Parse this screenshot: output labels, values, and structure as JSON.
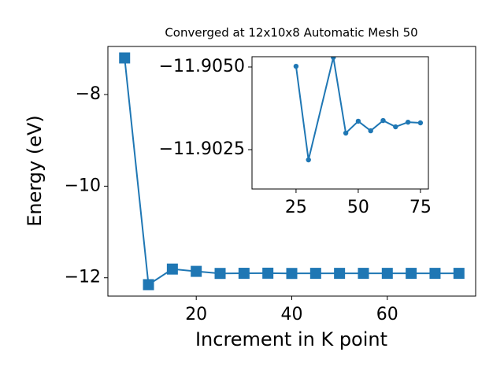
{
  "chart_data": [
    {
      "type": "line",
      "title": "Converged at 12x10x8 Automatic Mesh 50",
      "xlabel": "Increment in K point",
      "ylabel": "Energy (eV)",
      "x": [
        5,
        10,
        15,
        20,
        25,
        30,
        35,
        40,
        45,
        50,
        55,
        60,
        65,
        70,
        75
      ],
      "series": [
        {
          "color": "#1f77b4",
          "marker": "square",
          "values": [
            -7.2,
            -12.15,
            -11.81,
            -11.86,
            -11.90502,
            -11.90219,
            -11.9,
            -11.90529,
            -11.903,
            -11.90336,
            -11.90307,
            -11.90338,
            -11.90319,
            -11.90333,
            -11.90331
          ]
        }
      ],
      "xlim": [
        1.5,
        78.5
      ],
      "ylim": [
        -12.4,
        -6.95
      ],
      "xticks": [
        20,
        40,
        60
      ],
      "yticks": [
        {
          "value": -8,
          "label": "−8"
        },
        {
          "value": -10,
          "label": "−10"
        },
        {
          "value": -12,
          "label": "−12"
        }
      ]
    },
    {
      "type": "line",
      "inset": true,
      "x": [
        25,
        30,
        40,
        45,
        50,
        55,
        60,
        65,
        70,
        75
      ],
      "series": [
        {
          "color": "#1f77b4",
          "marker": "circle",
          "values": [
            -11.90502,
            -11.90219,
            -11.90529,
            -11.903,
            -11.90336,
            -11.90307,
            -11.90338,
            -11.90319,
            -11.90333,
            -11.90331
          ]
        }
      ],
      "xlim": [
        7.3,
        78.2
      ],
      "ylim": [
        -11.90131,
        -11.90531
      ],
      "xticks": [
        25,
        50,
        75
      ],
      "yticks": [
        {
          "value": -11.905,
          "label": "−11.9050"
        },
        {
          "value": -11.9025,
          "label": "−11.9025"
        }
      ]
    }
  ]
}
